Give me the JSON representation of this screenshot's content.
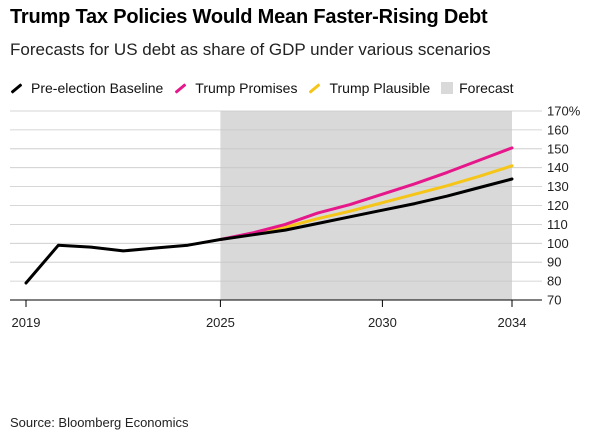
{
  "title": "Trump Tax Policies Would Mean Faster-Rising Debt",
  "subtitle": "Forecasts for US debt as share of GDP under various scenarios",
  "source": "Source: Bloomberg Economics",
  "legend": [
    {
      "label": "Pre-election Baseline",
      "color": "#000000",
      "kind": "line"
    },
    {
      "label": "Trump Promises",
      "color": "#e5178a",
      "kind": "line"
    },
    {
      "label": "Trump Plausible",
      "color": "#f5c518",
      "kind": "line"
    },
    {
      "label": "Forecast",
      "color": "#d9d9d9",
      "kind": "box"
    }
  ],
  "chart_data": {
    "type": "line",
    "title": "Trump Tax Policies Would Mean Faster-Rising Debt",
    "subtitle": "Forecasts for US debt as share of GDP under various scenarios",
    "xlabel": "",
    "ylabel": "",
    "xlim": [
      2019,
      2034
    ],
    "ylim": [
      70,
      170
    ],
    "x_ticks": [
      2019,
      2025,
      2030,
      2034
    ],
    "y_ticks": [
      70,
      80,
      90,
      100,
      110,
      120,
      130,
      140,
      150,
      160,
      170
    ],
    "y_tick_labels": [
      "70",
      "80",
      "90",
      "100",
      "110",
      "120",
      "130",
      "140",
      "150",
      "160",
      "170%"
    ],
    "y_axis_side": "right",
    "grid": "horizontal",
    "forecast_shade": {
      "label": "Forecast",
      "x_start": 2025,
      "x_end": 2034,
      "color": "#d9d9d9"
    },
    "series": [
      {
        "name": "Pre-election Baseline",
        "color": "#000000",
        "x": [
          2019,
          2020,
          2021,
          2022,
          2023,
          2024,
          2025,
          2026,
          2027,
          2028,
          2029,
          2030,
          2031,
          2032,
          2033,
          2034
        ],
        "y": [
          79,
          99,
          98,
          96,
          97.5,
          99,
          102,
          104.5,
          107,
          110.5,
          114,
          117.5,
          121,
          125,
          129.5,
          134
        ]
      },
      {
        "name": "Trump Promises",
        "color": "#e5178a",
        "x": [
          2025,
          2026,
          2027,
          2028,
          2029,
          2030,
          2031,
          2032,
          2033,
          2034
        ],
        "y": [
          102,
          105.5,
          110,
          116,
          120.5,
          126,
          131.5,
          137.5,
          144,
          150.5
        ]
      },
      {
        "name": "Trump Plausible",
        "color": "#f5c518",
        "x": [
          2025,
          2026,
          2027,
          2028,
          2029,
          2030,
          2031,
          2032,
          2033,
          2034
        ],
        "y": [
          102,
          105,
          108.5,
          113,
          117,
          121.5,
          126,
          130.5,
          135.5,
          141
        ]
      }
    ]
  }
}
